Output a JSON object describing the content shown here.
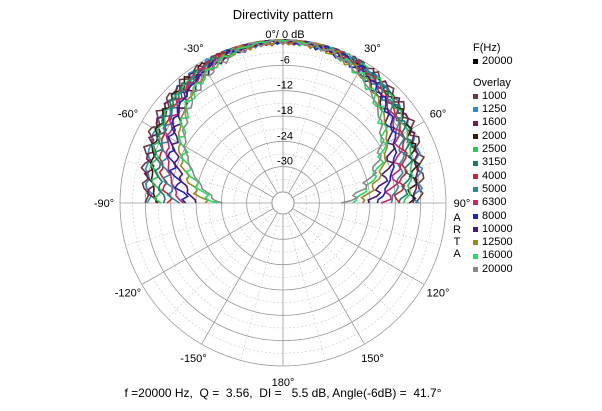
{
  "chart_data": {
    "type": "polar",
    "title": "Directivity pattern",
    "radial_ticks": [
      "0°/ 0 dB",
      "-6",
      "-12",
      "-18",
      "-24",
      "-30"
    ],
    "angle_ticks": [
      {
        "deg": -30,
        "label": "-30°"
      },
      {
        "deg": 30,
        "label": "30°"
      },
      {
        "deg": -60,
        "label": "-60°"
      },
      {
        "deg": 60,
        "label": "60°"
      },
      {
        "deg": -90,
        "label": "-90°"
      },
      {
        "deg": 90,
        "label": "90°"
      },
      {
        "deg": -120,
        "label": "-120°"
      },
      {
        "deg": 120,
        "label": "120°"
      },
      {
        "deg": -150,
        "label": "-150°"
      },
      {
        "deg": 150,
        "label": "150°"
      },
      {
        "deg": 180,
        "label": "180°"
      }
    ],
    "rlim_db": [
      -36,
      0
    ],
    "legend_header": "F(Hz)",
    "legend_main": {
      "name": "20000",
      "color": "#000000"
    },
    "overlay_header": "Overlay",
    "series": [
      {
        "name": "1000",
        "color": "#6b3a3a",
        "beam_6db": 85
      },
      {
        "name": "1250",
        "color": "#2a8bd0",
        "beam_6db": 80
      },
      {
        "name": "1600",
        "color": "#7a1a4a",
        "beam_6db": 76
      },
      {
        "name": "2000",
        "color": "#3a1a0a",
        "beam_6db": 72
      },
      {
        "name": "2500",
        "color": "#22cc55",
        "beam_6db": 68
      },
      {
        "name": "3150",
        "color": "#1a7a6a",
        "beam_6db": 64
      },
      {
        "name": "4000",
        "color": "#cc2233",
        "beam_6db": 60
      },
      {
        "name": "5000",
        "color": "#2a8a9a",
        "beam_6db": 57
      },
      {
        "name": "6300",
        "color": "#cc2266",
        "beam_6db": 54
      },
      {
        "name": "8000",
        "color": "#1a22cc",
        "beam_6db": 51
      },
      {
        "name": "10000",
        "color": "#4a1a7a",
        "beam_6db": 48
      },
      {
        "name": "12500",
        "color": "#9a8a1a",
        "beam_6db": 45
      },
      {
        "name": "16000",
        "color": "#22dd66",
        "beam_6db": 43
      },
      {
        "name": "20000",
        "color": "#8a8a8a",
        "beam_6db": 41.7
      }
    ],
    "arta_label": [
      "A",
      "R",
      "T",
      "A"
    ],
    "footer": {
      "f": "20000",
      "q": "3.56",
      "di": "5.5",
      "angle": "41.7",
      "text": "f =20000 Hz,  Q =  3.56,  DI =   5.5 dB, Angle(-6dB) =  41.7°"
    }
  }
}
